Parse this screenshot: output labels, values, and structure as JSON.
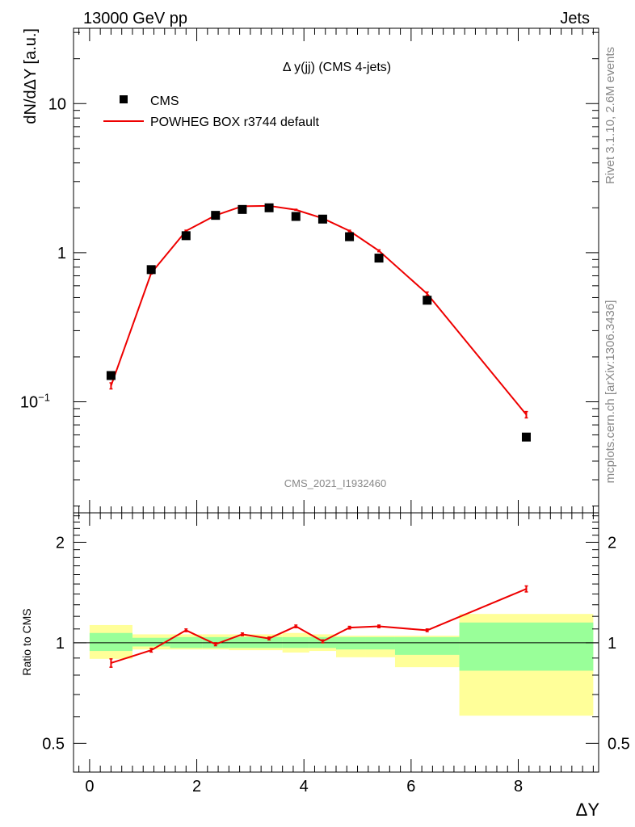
{
  "header": {
    "left": "13000 GeV pp",
    "right": "Jets",
    "side_rivet": "Rivet 3.1.10,  2.6M events",
    "side_mcplots": "mcplots.cern.ch [arXiv:1306.3436]"
  },
  "chart_data": [
    {
      "type": "scatter",
      "panel": "main",
      "title": "Δ y(jj) (CMS 4-jets)",
      "ylabel": "dN/dΔY [a.u.]",
      "xlabel": "ΔY",
      "yscale": "log",
      "xlim": [
        -0.3,
        9.5
      ],
      "ylim": [
        0.018,
        32
      ],
      "watermark": "CMS_2021_I1932460",
      "yticks": [
        {
          "value": 10,
          "label": "10"
        },
        {
          "value": 1,
          "label": "1"
        },
        {
          "value": 0.1,
          "label": "10",
          "sup": "−1"
        }
      ],
      "legend": [
        {
          "label": "CMS",
          "style": "marker",
          "color": "#000000"
        },
        {
          "label": "POWHEG BOX r3744 default",
          "style": "line",
          "color": "#ee0000"
        }
      ],
      "series": [
        {
          "name": "CMS",
          "style": "marker",
          "color": "#000000",
          "x": [
            0.4,
            1.15,
            1.8,
            2.35,
            2.85,
            3.35,
            3.85,
            4.35,
            4.85,
            5.4,
            6.3,
            8.15
          ],
          "y": [
            0.15,
            0.77,
            1.3,
            1.78,
            1.95,
            2.0,
            1.75,
            1.68,
            1.28,
            0.92,
            0.48,
            0.058
          ]
        },
        {
          "name": "POWHEG BOX r3744 default",
          "style": "line",
          "color": "#ee0000",
          "x": [
            0.4,
            1.15,
            1.8,
            2.35,
            2.85,
            3.35,
            3.85,
            4.35,
            4.85,
            5.4,
            6.3,
            8.15
          ],
          "y": [
            0.128,
            0.73,
            1.4,
            1.78,
            2.05,
            2.06,
            1.94,
            1.7,
            1.4,
            1.03,
            0.53,
            0.082
          ],
          "yerr": [
            0.006,
            0.01,
            0.015,
            0.015,
            0.015,
            0.015,
            0.015,
            0.015,
            0.015,
            0.015,
            0.015,
            0.004
          ]
        }
      ]
    },
    {
      "type": "line",
      "panel": "ratio",
      "ylabel": "Ratio to CMS",
      "xlabel": "ΔY",
      "yscale": "log",
      "xlim": [
        -0.3,
        9.5
      ],
      "ylim": [
        0.41,
        2.45
      ],
      "yticks": [
        {
          "value": 2,
          "label": "2"
        },
        {
          "value": 1,
          "label": "1"
        },
        {
          "value": 0.5,
          "label": "0.5"
        }
      ],
      "xticks": [
        0,
        2,
        4,
        6,
        8
      ],
      "bands": [
        {
          "x0": 0.0,
          "x1": 0.8,
          "yellow": [
            0.895,
            1.13
          ],
          "green": [
            0.945,
            1.07
          ]
        },
        {
          "x0": 0.8,
          "x1": 1.5,
          "yellow": [
            0.955,
            1.06
          ],
          "green": [
            0.975,
            1.035
          ]
        },
        {
          "x0": 1.5,
          "x1": 2.1,
          "yellow": [
            0.955,
            1.06
          ],
          "green": [
            0.965,
            1.04
          ]
        },
        {
          "x0": 2.1,
          "x1": 2.6,
          "yellow": [
            0.955,
            1.06
          ],
          "green": [
            0.965,
            1.04
          ]
        },
        {
          "x0": 2.6,
          "x1": 3.1,
          "yellow": [
            0.95,
            1.06
          ],
          "green": [
            0.965,
            1.04
          ]
        },
        {
          "x0": 3.1,
          "x1": 3.6,
          "yellow": [
            0.95,
            1.06
          ],
          "green": [
            0.965,
            1.04
          ]
        },
        {
          "x0": 3.6,
          "x1": 4.1,
          "yellow": [
            0.935,
            1.07
          ],
          "green": [
            0.965,
            1.04
          ]
        },
        {
          "x0": 4.1,
          "x1": 4.6,
          "yellow": [
            0.945,
            1.06
          ],
          "green": [
            0.965,
            1.04
          ]
        },
        {
          "x0": 4.6,
          "x1": 5.15,
          "yellow": [
            0.905,
            1.05
          ],
          "green": [
            0.955,
            1.04
          ]
        },
        {
          "x0": 5.15,
          "x1": 5.7,
          "yellow": [
            0.905,
            1.05
          ],
          "green": [
            0.955,
            1.04
          ]
        },
        {
          "x0": 5.7,
          "x1": 6.9,
          "yellow": [
            0.845,
            1.05
          ],
          "green": [
            0.92,
            1.04
          ]
        },
        {
          "x0": 6.9,
          "x1": 9.4,
          "yellow": [
            0.605,
            1.22
          ],
          "green": [
            0.825,
            1.15
          ]
        }
      ],
      "series": [
        {
          "name": "POWHEG BOX r3744 default",
          "color": "#ee0000",
          "x": [
            0.4,
            1.15,
            1.8,
            2.35,
            2.85,
            3.35,
            3.85,
            4.35,
            4.85,
            5.4,
            6.3,
            8.15
          ],
          "y": [
            0.87,
            0.95,
            1.09,
            0.99,
            1.06,
            1.03,
            1.12,
            1.01,
            1.11,
            1.12,
            1.09,
            1.45
          ],
          "yerr": [
            0.025,
            0.012,
            0.01,
            0.01,
            0.01,
            0.01,
            0.01,
            0.01,
            0.01,
            0.01,
            0.01,
            0.03
          ]
        }
      ]
    }
  ]
}
